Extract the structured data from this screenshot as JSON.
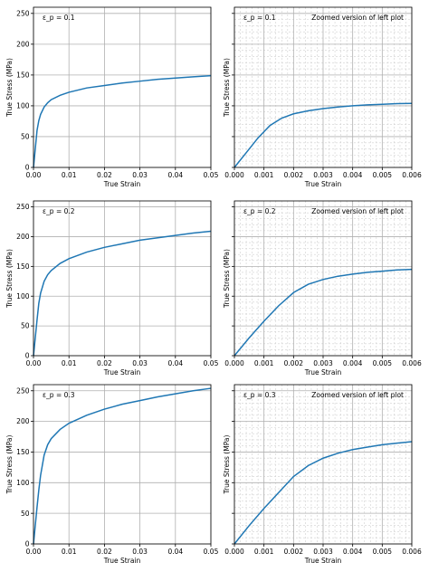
{
  "chart_data": [
    {
      "type": "line",
      "annotation": "ε_p = 0.1",
      "note": "",
      "xlabel": "True Strain",
      "ylabel": "True Stress (MPa)",
      "xlim": [
        0,
        0.05
      ],
      "ylim": [
        0,
        260
      ],
      "xticks": [
        "0.00",
        "0.01",
        "0.02",
        "0.03",
        "0.04",
        "0.05"
      ],
      "yticks": [
        "0",
        "50",
        "100",
        "150",
        "200",
        "250"
      ],
      "grid": "major",
      "series": [
        {
          "color": "#1f77b4",
          "x": [
            0,
            0.0005,
            0.001,
            0.0015,
            0.002,
            0.003,
            0.004,
            0.005,
            0.0075,
            0.01,
            0.015,
            0.02,
            0.025,
            0.03,
            0.035,
            0.04,
            0.045,
            0.05
          ],
          "y": [
            0,
            30,
            60,
            76,
            86,
            98,
            105,
            110,
            117,
            122,
            129,
            133,
            137,
            140,
            143,
            145,
            147,
            149
          ]
        }
      ]
    },
    {
      "type": "line",
      "annotation": "ε_p = 0.1",
      "note": "Zoomed version of left plot",
      "xlabel": "True Strain",
      "ylabel": "True Stress (MPa)",
      "xlim": [
        0,
        0.006
      ],
      "ylim": [
        0,
        260
      ],
      "xticks": [
        "0.000",
        "0.001",
        "0.002",
        "0.003",
        "0.004",
        "0.005",
        "0.006"
      ],
      "yticks": [],
      "grid": "major+minor",
      "series": [
        {
          "color": "#1f77b4",
          "x": [
            0,
            0.0004,
            0.0008,
            0.0012,
            0.0016,
            0.002,
            0.0025,
            0.003,
            0.0035,
            0.004,
            0.0045,
            0.005,
            0.0055,
            0.006
          ],
          "y": [
            0,
            24,
            48,
            68,
            80,
            87,
            92,
            95.5,
            98,
            100,
            101.5,
            102.5,
            103.5,
            104
          ]
        }
      ]
    },
    {
      "type": "line",
      "annotation": "ε_p = 0.2",
      "note": "",
      "xlabel": "True Strain",
      "ylabel": "True Stress (MPa)",
      "xlim": [
        0,
        0.05
      ],
      "ylim": [
        0,
        260
      ],
      "xticks": [
        "0.00",
        "0.01",
        "0.02",
        "0.03",
        "0.04",
        "0.05"
      ],
      "yticks": [
        "0",
        "50",
        "100",
        "150",
        "200",
        "250"
      ],
      "grid": "major",
      "series": [
        {
          "color": "#1f77b4",
          "x": [
            0,
            0.0005,
            0.001,
            0.0015,
            0.002,
            0.003,
            0.004,
            0.005,
            0.0075,
            0.01,
            0.015,
            0.02,
            0.025,
            0.03,
            0.035,
            0.04,
            0.045,
            0.05
          ],
          "y": [
            0,
            30,
            60,
            88,
            105,
            125,
            136,
            143,
            155,
            163,
            174,
            182,
            188,
            194,
            198,
            202,
            206,
            209
          ]
        }
      ]
    },
    {
      "type": "line",
      "annotation": "ε_p = 0.2",
      "note": "Zoomed version of left plot",
      "xlabel": "True Strain",
      "ylabel": "True Stress (MPa)",
      "xlim": [
        0,
        0.006
      ],
      "ylim": [
        0,
        260
      ],
      "xticks": [
        "0.000",
        "0.001",
        "0.002",
        "0.003",
        "0.004",
        "0.005",
        "0.006"
      ],
      "yticks": [],
      "grid": "major+minor",
      "series": [
        {
          "color": "#1f77b4",
          "x": [
            0,
            0.0005,
            0.001,
            0.0015,
            0.002,
            0.0025,
            0.003,
            0.0035,
            0.004,
            0.0045,
            0.005,
            0.0055,
            0.006
          ],
          "y": [
            0,
            30,
            58,
            84,
            106,
            120,
            128,
            133.5,
            137,
            140,
            142,
            144,
            145
          ]
        }
      ]
    },
    {
      "type": "line",
      "annotation": "ε_p = 0.3",
      "note": "",
      "xlabel": "True Strain",
      "ylabel": "True Stress (MPa)",
      "xlim": [
        0,
        0.05
      ],
      "ylim": [
        0,
        260
      ],
      "xticks": [
        "0.00",
        "0.01",
        "0.02",
        "0.03",
        "0.04",
        "0.05"
      ],
      "yticks": [
        "0",
        "50",
        "100",
        "150",
        "200",
        "250"
      ],
      "grid": "major",
      "series": [
        {
          "color": "#1f77b4",
          "x": [
            0,
            0.0005,
            0.001,
            0.0015,
            0.002,
            0.003,
            0.004,
            0.005,
            0.0075,
            0.01,
            0.015,
            0.02,
            0.025,
            0.03,
            0.035,
            0.04,
            0.045,
            0.05
          ],
          "y": [
            0,
            30,
            60,
            88,
            112,
            145,
            162,
            172,
            187,
            197,
            210,
            220,
            228,
            234,
            240,
            245,
            250,
            254
          ]
        }
      ]
    },
    {
      "type": "line",
      "annotation": "ε_p = 0.3",
      "note": "Zoomed version of left plot",
      "xlabel": "True Strain",
      "ylabel": "True Stress (MPa)",
      "xlim": [
        0,
        0.006
      ],
      "ylim": [
        0,
        260
      ],
      "xticks": [
        "0.000",
        "0.001",
        "0.002",
        "0.003",
        "0.004",
        "0.005",
        "0.006"
      ],
      "yticks": [],
      "grid": "major+minor",
      "series": [
        {
          "color": "#1f77b4",
          "x": [
            0,
            0.0005,
            0.001,
            0.0015,
            0.002,
            0.0025,
            0.003,
            0.0035,
            0.004,
            0.0045,
            0.005,
            0.0055,
            0.006
          ],
          "y": [
            0,
            30,
            58,
            84,
            110,
            128,
            140,
            148,
            154,
            158,
            162,
            164.5,
            167
          ]
        }
      ]
    }
  ]
}
